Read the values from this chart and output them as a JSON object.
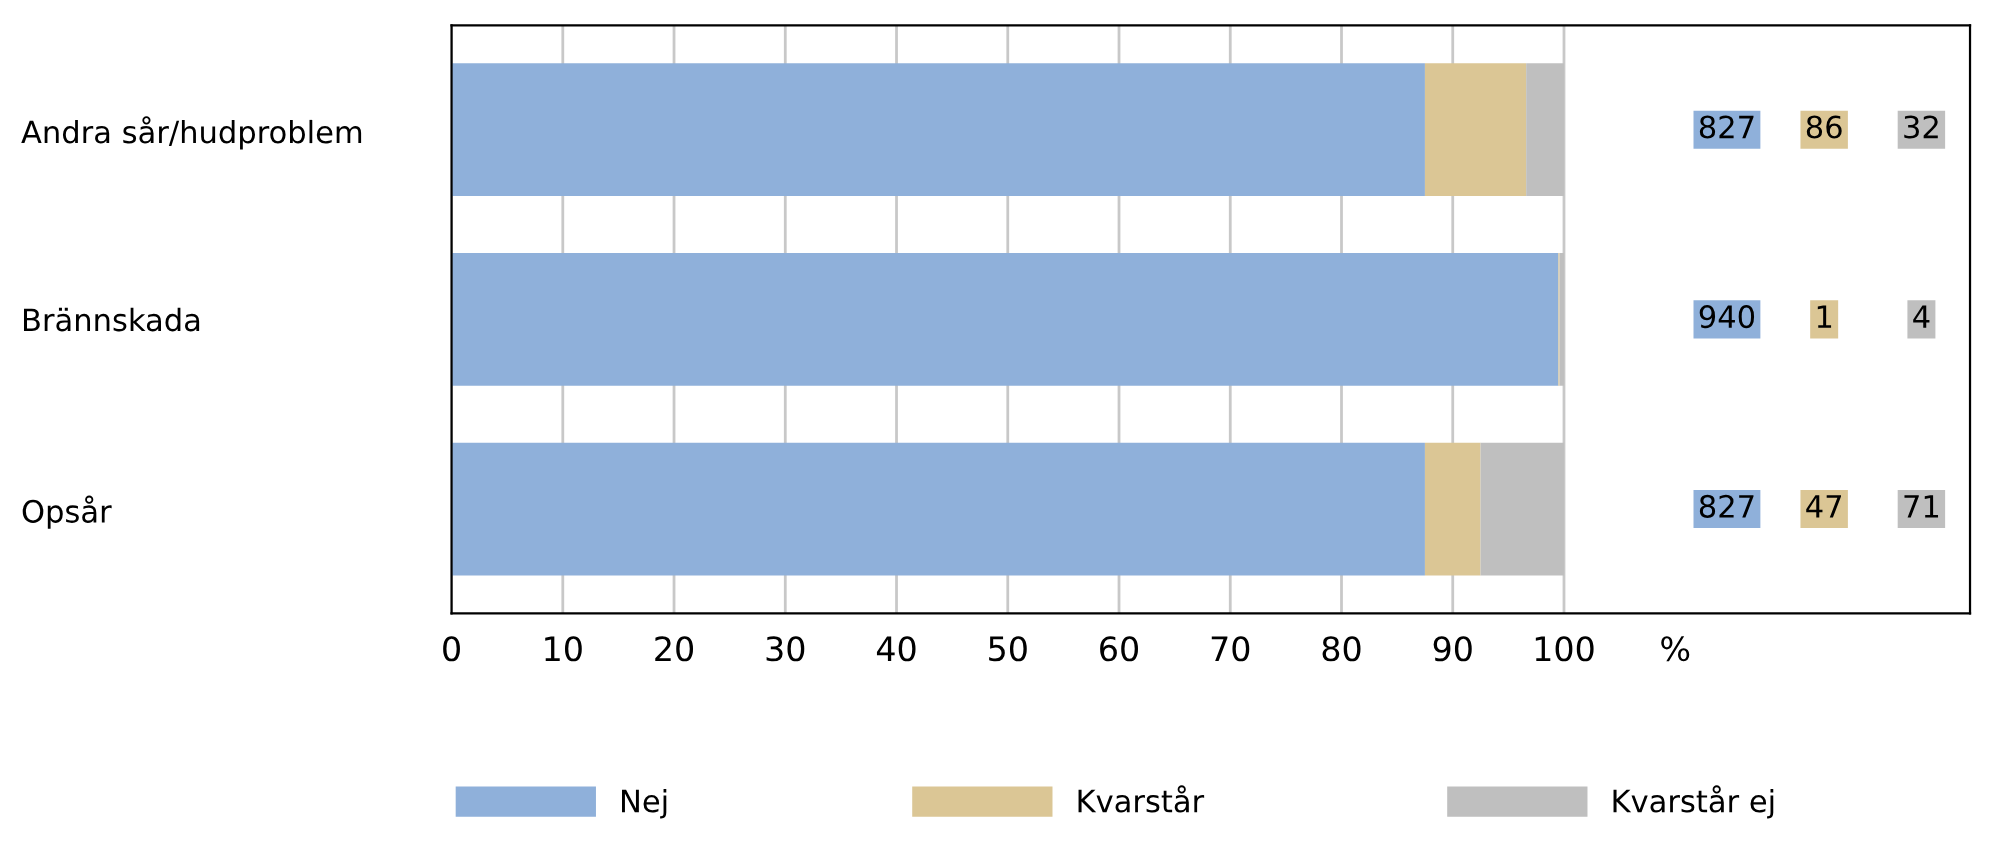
{
  "chart_data": [
    {
      "type": "bar",
      "orientation": "horizontal",
      "stacked": true,
      "categories": [
        "Andra sår/hudproblem",
        "Brännskada",
        "Opsår"
      ],
      "series": [
        {
          "name": "Nej",
          "color": "#8fb0da",
          "values": [
            87.5,
            99.5,
            87.5
          ]
        },
        {
          "name": "Kvarstår",
          "color": "#dbc695",
          "values": [
            9.1,
            0.1,
            5.0
          ]
        },
        {
          "name": "Kvarstår ej",
          "color": "#bfbfbf",
          "values": [
            3.4,
            0.4,
            7.5
          ]
        }
      ],
      "xlim": [
        0,
        136.5
      ],
      "xticks": [
        0,
        10,
        20,
        30,
        40,
        50,
        60,
        70,
        80,
        90,
        100,
        {
          "value": 110,
          "label": "%"
        }
      ],
      "grid": "x",
      "legend": "bottom"
    },
    {
      "type": "other",
      "annotations": [
        "827",
        "86",
        "32",
        "940",
        "1",
        "4",
        "827",
        "47",
        "71"
      ]
    }
  ]
}
